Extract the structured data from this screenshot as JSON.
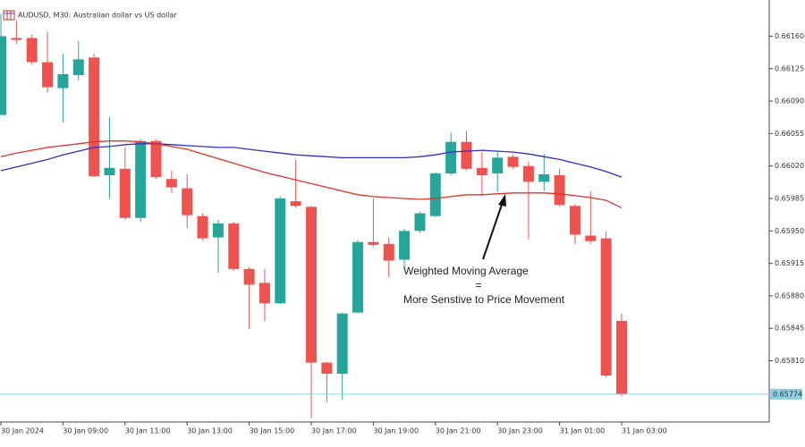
{
  "chart_data": {
    "type": "candlestick",
    "title": "AUDUSD, M30:  Australian dollar vs US dollar",
    "categories": [
      "30 Jan 2024",
      null,
      null,
      null,
      "30 Jan 09:00",
      null,
      null,
      null,
      "30 Jan 11:00",
      null,
      null,
      null,
      "30 Jan 13:00",
      null,
      null,
      null,
      "30 Jan 15:00",
      null,
      null,
      null,
      "30 Jan 17:00",
      null,
      null,
      null,
      "30 Jan 19:00",
      null,
      null,
      null,
      "30 Jan 21:00",
      null,
      null,
      null,
      "30 Jan 23:00",
      null,
      null,
      null,
      "31 Jan 01:00",
      null,
      null,
      null,
      "31 Jan 03:00"
    ],
    "open": [
      0.66075,
      0.66158,
      0.66158,
      0.66132,
      0.66104,
      0.66118,
      0.66137,
      0.6601,
      0.66017,
      0.65964,
      0.66047,
      0.66006,
      0.65996,
      0.65966,
      0.65943,
      0.65958,
      0.65909,
      0.65894,
      0.65872,
      0.65982,
      0.65976,
      0.65808,
      0.65796,
      0.65862,
      0.65938,
      0.65936,
      0.65919,
      0.6595,
      0.65966,
      0.66012,
      0.66046,
      0.66018,
      0.66012,
      0.6603,
      0.6602,
      0.66003,
      0.6601,
      0.65977,
      0.65945,
      0.65942,
      0.65853
    ],
    "high": [
      0.66184,
      0.66177,
      0.66162,
      0.66165,
      0.66141,
      0.66155,
      0.66141,
      0.66073,
      0.6604,
      0.66049,
      0.66049,
      0.66015,
      0.66011,
      0.65969,
      0.65962,
      0.6596,
      0.65911,
      0.65909,
      0.65987,
      0.66027,
      0.65977,
      0.65809,
      0.65862,
      0.6594,
      0.65985,
      0.65943,
      0.65952,
      0.65971,
      0.66013,
      0.66056,
      0.66058,
      0.66035,
      0.66035,
      0.66032,
      0.66025,
      0.66033,
      0.66017,
      0.65979,
      0.65993,
      0.6595,
      0.65861
    ],
    "low": [
      0.66075,
      0.66152,
      0.66129,
      0.66099,
      0.66067,
      0.66112,
      0.66008,
      0.65985,
      0.65962,
      0.6596,
      0.66006,
      0.65991,
      0.65953,
      0.6594,
      0.65905,
      0.65907,
      0.65844,
      0.65853,
      0.65871,
      0.65975,
      0.65748,
      0.65765,
      0.65768,
      0.65861,
      0.65933,
      0.659,
      0.65909,
      0.65948,
      0.65965,
      0.6601,
      0.66015,
      0.65988,
      0.65992,
      0.66017,
      0.65941,
      0.65993,
      0.65976,
      0.65936,
      0.65936,
      0.65792,
      0.65772
    ],
    "close": [
      0.6616,
      0.66156,
      0.66132,
      0.66105,
      0.66119,
      0.66135,
      0.66009,
      0.66018,
      0.65964,
      0.66047,
      0.66008,
      0.65997,
      0.65967,
      0.65942,
      0.65958,
      0.65909,
      0.65892,
      0.65872,
      0.65985,
      0.65977,
      0.65808,
      0.65796,
      0.65861,
      0.65938,
      0.65935,
      0.65918,
      0.6595,
      0.65969,
      0.66012,
      0.66046,
      0.66017,
      0.6601,
      0.66029,
      0.66019,
      0.66003,
      0.66011,
      0.65978,
      0.65946,
      0.65939,
      0.65794,
      0.65774
    ],
    "up_color": "#26a69a",
    "down_color": "#ef5350",
    "moving_averages": [
      {
        "color": "#2e2ed0",
        "values": [
          0.66015,
          0.66019,
          0.66023,
          0.66027,
          0.66032,
          0.66036,
          0.6604,
          0.66041,
          0.66043,
          0.66044,
          0.66044,
          0.66043,
          0.66042,
          0.66041,
          0.6604,
          0.6604,
          0.66038,
          0.66036,
          0.66034,
          0.66032,
          0.66031,
          0.6603,
          0.66029,
          0.66029,
          0.66029,
          0.66029,
          0.66029,
          0.6603,
          0.66032,
          0.66035,
          0.66036,
          0.66037,
          0.66036,
          0.66035,
          0.66033,
          0.6603,
          0.66027,
          0.66023,
          0.66019,
          0.66014,
          0.66008
        ]
      },
      {
        "color": "#e2322c",
        "values": [
          0.6603,
          0.66034,
          0.66037,
          0.6604,
          0.66042,
          0.66044,
          0.66046,
          0.66047,
          0.66047,
          0.66046,
          0.66044,
          0.66041,
          0.66038,
          0.66033,
          0.66028,
          0.66023,
          0.66018,
          0.66013,
          0.66009,
          0.66005,
          0.66001,
          0.65997,
          0.65993,
          0.65989,
          0.65987,
          0.65986,
          0.65985,
          0.65984,
          0.65985,
          0.65987,
          0.65989,
          0.65989,
          0.6599,
          0.65991,
          0.65991,
          0.65991,
          0.6599,
          0.65988,
          0.65986,
          0.65983,
          0.65975
        ]
      }
    ],
    "current_price": 0.65774,
    "current_price_color": "#8fcfe2",
    "ylim": [
      0.65744,
      0.66199
    ],
    "yticks": [
      {
        "value": 0.6616,
        "label": "0.66160"
      },
      {
        "value": 0.66125,
        "label": "0.66125"
      },
      {
        "value": 0.6609,
        "label": "0.66090"
      },
      {
        "value": 0.66055,
        "label": "0.66055"
      },
      {
        "value": 0.6602,
        "label": "0.66020"
      },
      {
        "value": 0.65985,
        "label": "0.65985"
      },
      {
        "value": 0.6595,
        "label": "0.65950"
      },
      {
        "value": 0.65915,
        "label": "0.65915"
      },
      {
        "value": 0.6588,
        "label": "0.65880"
      },
      {
        "value": 0.65845,
        "label": "0.65845"
      },
      {
        "value": 0.6581,
        "label": "0.65810"
      }
    ],
    "annotation": [
      "Weighted Moving Average",
      "=",
      "More Senstive to Price Movement"
    ]
  }
}
